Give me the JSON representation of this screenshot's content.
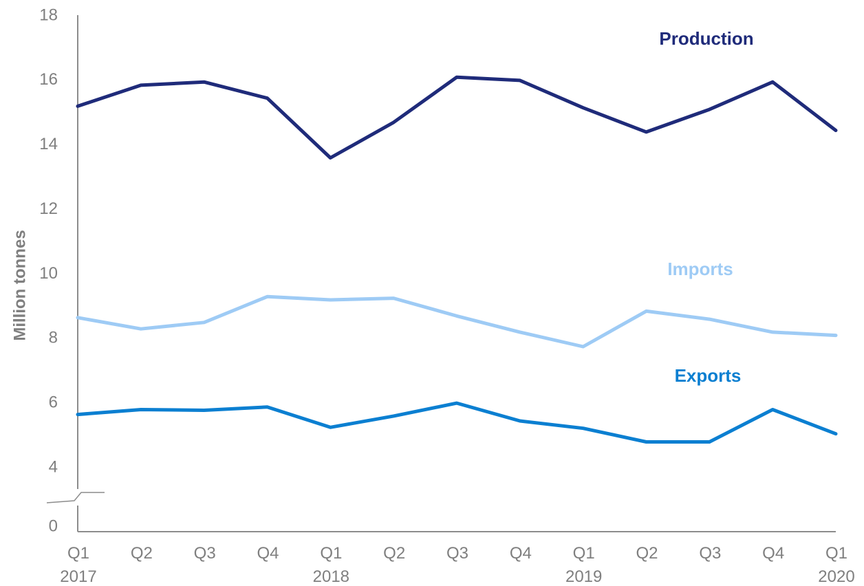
{
  "chart_data": {
    "type": "line",
    "ylabel": "Million tonnes",
    "y_ticks": [
      "0",
      "4",
      "6",
      "8",
      "10",
      "12",
      "14",
      "16",
      "18"
    ],
    "y_axis_break": true,
    "ylim": [
      4,
      18
    ],
    "x_quarters": [
      "Q1",
      "Q2",
      "Q3",
      "Q4",
      "Q1",
      "Q2",
      "Q3",
      "Q4",
      "Q1",
      "Q2",
      "Q3",
      "Q4",
      "Q1"
    ],
    "x_years": [
      {
        "index": 0,
        "label": "2017"
      },
      {
        "index": 4,
        "label": "2018"
      },
      {
        "index": 8,
        "label": "2019"
      },
      {
        "index": 12,
        "label": "2020"
      }
    ],
    "series": [
      {
        "name": "Production",
        "color": "#1f2b7a",
        "values": [
          15.2,
          15.85,
          15.95,
          15.45,
          13.6,
          14.7,
          16.1,
          16.0,
          15.15,
          14.4,
          15.1,
          15.95,
          14.45
        ]
      },
      {
        "name": "Imports",
        "color": "#9ecbf5",
        "values": [
          8.65,
          8.3,
          8.5,
          9.3,
          9.2,
          9.25,
          8.7,
          8.2,
          7.75,
          8.85,
          8.6,
          8.2,
          8.1
        ]
      },
      {
        "name": "Exports",
        "color": "#0b7fd1",
        "values": [
          5.65,
          5.8,
          5.78,
          5.88,
          5.25,
          5.6,
          6.0,
          5.45,
          5.22,
          4.8,
          4.8,
          5.8,
          5.05
        ]
      }
    ],
    "grid": false,
    "legend": "inline labels"
  }
}
